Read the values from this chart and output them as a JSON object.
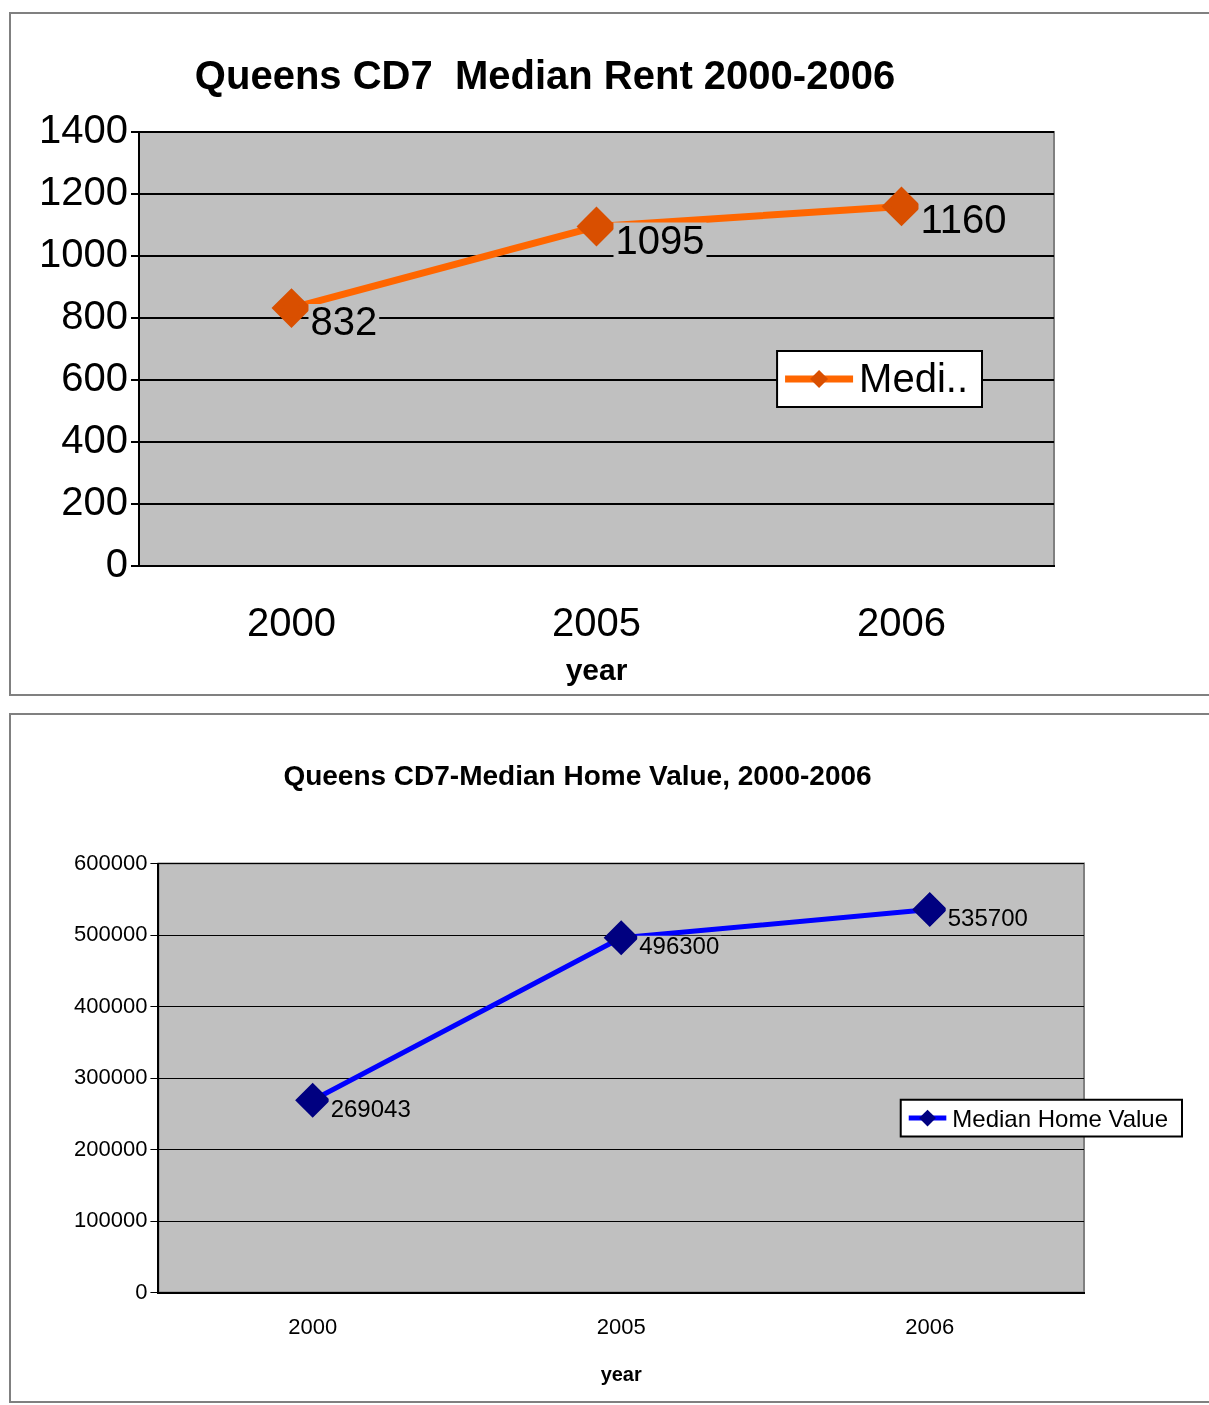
{
  "chart_data": [
    {
      "type": "line",
      "title": "Queens CD7  Median Rent 2000-2006",
      "xlabel": "year",
      "categories": [
        "2000",
        "2005",
        "2006"
      ],
      "series": [
        {
          "name": "Medi..",
          "color": "#ff6600",
          "values": [
            832,
            1095,
            1160
          ]
        }
      ],
      "ylim": [
        0,
        1400
      ],
      "yticks": [
        0,
        200,
        400,
        600,
        800,
        1000,
        1200,
        1400
      ],
      "grid": "y",
      "legend": "right",
      "marker": "diamond",
      "data_labels": true
    },
    {
      "type": "line",
      "title": "Queens CD7-Median Home Value, 2000-2006",
      "xlabel": "year",
      "categories": [
        "2000",
        "2005",
        "2006"
      ],
      "series": [
        {
          "name": "Median Home Value",
          "color": "#0000ff",
          "values": [
            269043,
            496300,
            535700
          ]
        }
      ],
      "ylim": [
        0,
        600000
      ],
      "yticks": [
        0,
        100000,
        200000,
        300000,
        400000,
        500000,
        600000
      ],
      "grid": "y",
      "legend": "right",
      "marker": "diamond",
      "data_labels": true
    }
  ]
}
